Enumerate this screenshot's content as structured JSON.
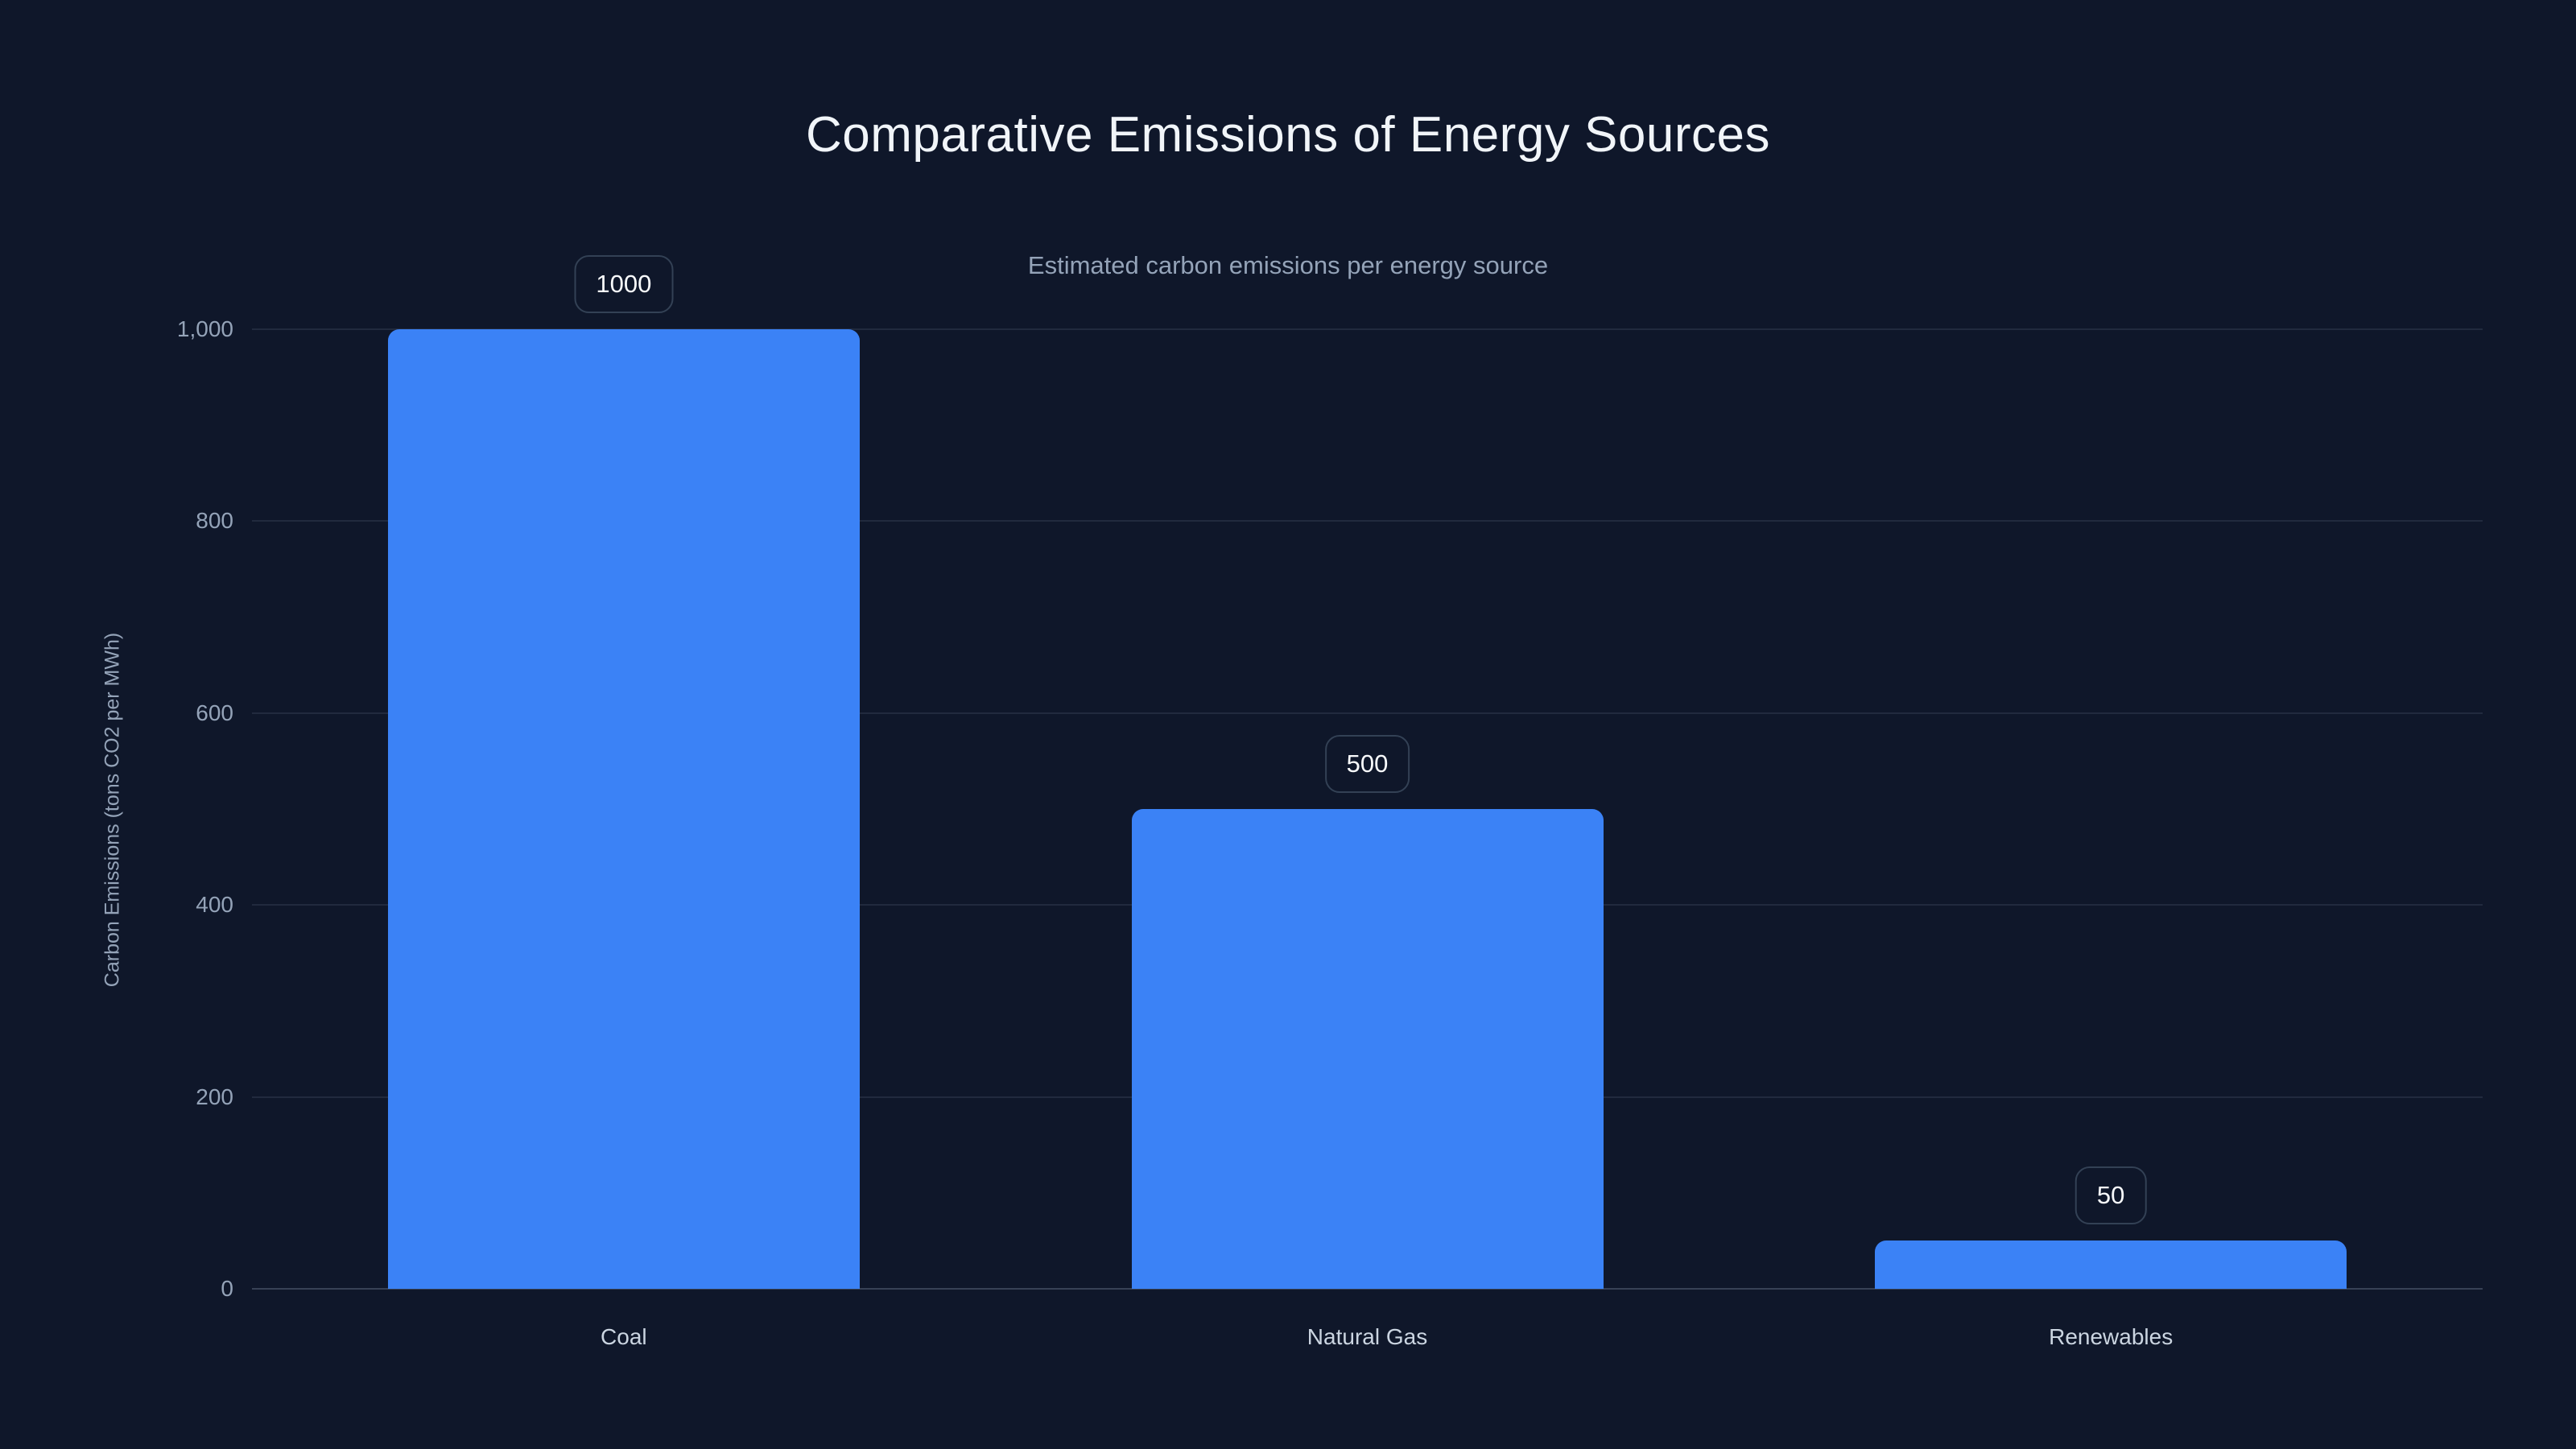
{
  "chart_data": {
    "type": "bar",
    "title": "Comparative Emissions of Energy Sources",
    "subtitle": "Estimated carbon emissions per energy source",
    "ylabel": "Carbon Emissions (tons CO2 per MWh)",
    "xlabel": "",
    "categories": [
      "Coal",
      "Natural Gas",
      "Renewables"
    ],
    "values": [
      1000,
      500,
      50
    ],
    "value_labels": [
      "1000",
      "500",
      "50"
    ],
    "ylim": [
      0,
      1000
    ],
    "yticks": [
      {
        "value": 0,
        "label": "0"
      },
      {
        "value": 200,
        "label": "200"
      },
      {
        "value": 400,
        "label": "400"
      },
      {
        "value": 600,
        "label": "600"
      },
      {
        "value": 800,
        "label": "800"
      },
      {
        "value": 1000,
        "label": "1,000"
      }
    ],
    "grid": true,
    "legend": false,
    "colors": {
      "background": "#0f172a",
      "bar": "#3b82f6",
      "grid_line": "rgba(148,163,184,0.14)",
      "axis_line": "rgba(148,163,184,0.30)",
      "title": "#f1f5f9",
      "subtitle": "#94a3b8",
      "tick_label": "#94a3b8",
      "category_label": "#cbd5e1",
      "badge_border": "#334155",
      "badge_text": "#f8fafc"
    }
  }
}
